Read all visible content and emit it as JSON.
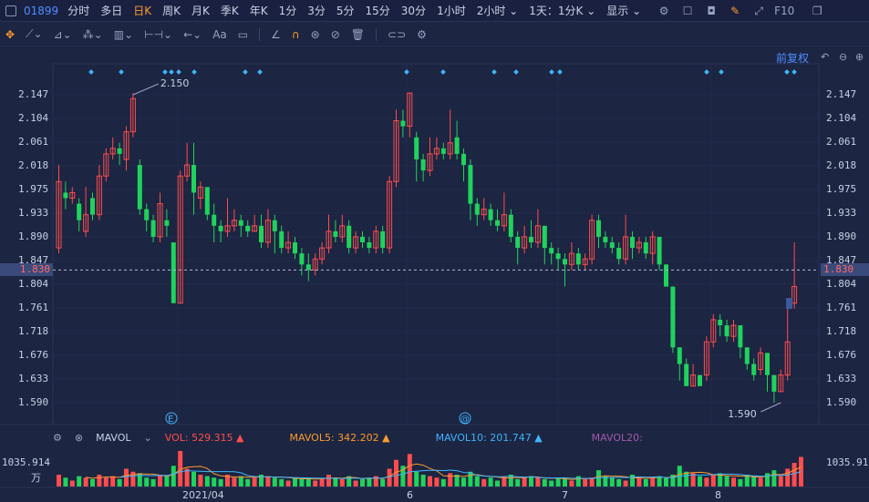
{
  "topbar": {
    "code": "01899",
    "periods": [
      "分时",
      "多日",
      "日K",
      "周K",
      "月K",
      "季K",
      "年K",
      "1分",
      "3分",
      "5分",
      "15分",
      "30分",
      "1小时",
      "2小时 ⌄",
      "1天：1分K ⌄",
      "显示 ⌄"
    ],
    "active_period": "日K",
    "f10": "F10"
  },
  "toolbar": {
    "text_tool": "Aa"
  },
  "chart_header": {
    "adjust_label": "前复权"
  },
  "price_axis": {
    "labels": [
      "2.147",
      "2.104",
      "2.061",
      "2.018",
      "1.975",
      "1.933",
      "1.890",
      "1.847",
      "1.804",
      "1.761",
      "1.718",
      "1.676",
      "1.633",
      "1.590"
    ],
    "current": "1.830"
  },
  "annotations": {
    "high": "2.150",
    "low": "1.590"
  },
  "markers": {
    "e_marker": "E",
    "at_marker": "@"
  },
  "indicator": {
    "name": "MAVOL",
    "vol": "VOL: 529.315 ▲",
    "mavol5": "MAVOL5: 342.202 ▲",
    "mavol10": "MAVOL10: 201.747 ▲",
    "mavol20": "MAVOL20:"
  },
  "volume_axis": {
    "max": "1035.914",
    "unit": "万"
  },
  "dates": [
    "2021/04",
    "6",
    "7",
    "8"
  ],
  "colors": {
    "up": "#ff4d4f",
    "down": "#1fd35d",
    "bg": "#1c2541",
    "accent": "#4f8cff",
    "active": "#ff9a2e"
  },
  "chart_data": {
    "type": "candlestick",
    "ylim": [
      1.59,
      2.147
    ],
    "candles": [
      [
        1.87,
        1.99,
        2.02,
        1.86
      ],
      [
        1.97,
        1.96,
        1.99,
        1.94
      ],
      [
        1.96,
        1.97,
        1.98,
        1.95
      ],
      [
        1.95,
        1.92,
        1.96,
        1.9
      ],
      [
        1.9,
        1.93,
        1.98,
        1.89
      ],
      [
        1.96,
        1.93,
        1.97,
        1.92
      ],
      [
        1.93,
        2.0,
        2.02,
        1.92
      ],
      [
        2.0,
        2.04,
        2.05,
        1.99
      ],
      [
        2.04,
        2.05,
        2.07,
        2.03
      ],
      [
        2.05,
        2.04,
        2.06,
        2.02
      ],
      [
        2.03,
        2.08,
        2.09,
        2.01
      ],
      [
        2.08,
        2.14,
        2.15,
        2.07
      ],
      [
        2.02,
        1.94,
        2.03,
        1.93
      ],
      [
        1.94,
        1.92,
        1.95,
        1.9
      ],
      [
        1.92,
        1.89,
        1.93,
        1.88
      ],
      [
        1.89,
        1.95,
        1.97,
        1.88
      ],
      [
        1.92,
        1.91,
        1.94,
        1.89
      ],
      [
        1.88,
        1.77,
        1.88,
        1.77
      ],
      [
        1.77,
        2.0,
        2.01,
        1.77
      ],
      [
        2.0,
        2.02,
        2.06,
        1.99
      ],
      [
        2.02,
        1.97,
        2.06,
        1.93
      ],
      [
        1.96,
        1.98,
        1.99,
        1.94
      ],
      [
        1.98,
        1.93,
        1.98,
        1.92
      ],
      [
        1.93,
        1.91,
        1.95,
        1.88
      ],
      [
        1.91,
        1.9,
        1.92,
        1.88
      ],
      [
        1.9,
        1.91,
        1.96,
        1.89
      ],
      [
        1.91,
        1.92,
        1.94,
        1.9
      ],
      [
        1.92,
        1.91,
        1.93,
        1.89
      ],
      [
        1.91,
        1.9,
        1.92,
        1.89
      ],
      [
        1.9,
        1.91,
        1.93,
        1.9
      ],
      [
        1.91,
        1.88,
        1.93,
        1.87
      ],
      [
        1.88,
        1.92,
        1.94,
        1.87
      ],
      [
        1.92,
        1.9,
        1.93,
        1.86
      ],
      [
        1.9,
        1.87,
        1.91,
        1.86
      ],
      [
        1.87,
        1.88,
        1.9,
        1.86
      ],
      [
        1.88,
        1.86,
        1.89,
        1.85
      ],
      [
        1.86,
        1.84,
        1.87,
        1.82
      ],
      [
        1.84,
        1.83,
        1.86,
        1.81
      ],
      [
        1.83,
        1.85,
        1.86,
        1.82
      ],
      [
        1.85,
        1.87,
        1.88,
        1.84
      ],
      [
        1.87,
        1.9,
        1.93,
        1.86
      ],
      [
        1.9,
        1.89,
        1.92,
        1.88
      ],
      [
        1.89,
        1.91,
        1.93,
        1.88
      ],
      [
        1.91,
        1.87,
        1.92,
        1.86
      ],
      [
        1.87,
        1.89,
        1.9,
        1.86
      ],
      [
        1.89,
        1.88,
        1.9,
        1.87
      ],
      [
        1.88,
        1.87,
        1.89,
        1.86
      ],
      [
        1.87,
        1.9,
        1.91,
        1.86
      ],
      [
        1.9,
        1.87,
        1.91,
        1.86
      ],
      [
        1.87,
        1.99,
        2.0,
        1.86
      ],
      [
        1.99,
        2.1,
        2.12,
        1.98
      ],
      [
        2.1,
        2.09,
        2.12,
        2.07
      ],
      [
        2.09,
        2.15,
        2.15,
        2.07
      ],
      [
        2.07,
        2.03,
        2.08,
        1.99
      ],
      [
        2.03,
        2.01,
        2.04,
        1.99
      ],
      [
        2.01,
        2.04,
        2.07,
        2.0
      ],
      [
        2.04,
        2.05,
        2.07,
        2.03
      ],
      [
        2.05,
        2.04,
        2.06,
        2.03
      ],
      [
        2.04,
        2.06,
        2.12,
        2.03
      ],
      [
        2.07,
        2.04,
        2.1,
        2.03
      ],
      [
        2.04,
        2.02,
        2.05,
        1.99
      ],
      [
        2.02,
        1.95,
        2.03,
        1.92
      ],
      [
        1.95,
        1.93,
        1.96,
        1.91
      ],
      [
        1.93,
        1.94,
        1.96,
        1.92
      ],
      [
        1.94,
        1.92,
        1.95,
        1.91
      ],
      [
        1.92,
        1.91,
        1.94,
        1.9
      ],
      [
        1.91,
        1.93,
        1.97,
        1.9
      ],
      [
        1.93,
        1.89,
        1.94,
        1.88
      ],
      [
        1.89,
        1.87,
        1.9,
        1.84
      ],
      [
        1.87,
        1.89,
        1.91,
        1.86
      ],
      [
        1.89,
        1.88,
        1.92,
        1.87
      ],
      [
        1.88,
        1.91,
        1.94,
        1.87
      ],
      [
        1.91,
        1.87,
        1.91,
        1.84
      ],
      [
        1.87,
        1.86,
        1.88,
        1.84
      ],
      [
        1.86,
        1.85,
        1.87,
        1.83
      ],
      [
        1.85,
        1.84,
        1.86,
        1.8
      ],
      [
        1.84,
        1.86,
        1.88,
        1.83
      ],
      [
        1.86,
        1.84,
        1.87,
        1.83
      ],
      [
        1.84,
        1.85,
        1.86,
        1.83
      ],
      [
        1.85,
        1.92,
        1.93,
        1.84
      ],
      [
        1.92,
        1.89,
        1.93,
        1.87
      ],
      [
        1.89,
        1.88,
        1.9,
        1.87
      ],
      [
        1.88,
        1.87,
        1.89,
        1.86
      ],
      [
        1.87,
        1.85,
        1.88,
        1.84
      ],
      [
        1.85,
        1.89,
        1.93,
        1.84
      ],
      [
        1.89,
        1.87,
        1.9,
        1.85
      ],
      [
        1.87,
        1.88,
        1.89,
        1.86
      ],
      [
        1.88,
        1.86,
        1.89,
        1.85
      ],
      [
        1.86,
        1.89,
        1.9,
        1.84
      ],
      [
        1.89,
        1.84,
        1.89,
        1.83
      ],
      [
        1.84,
        1.8,
        1.84,
        1.8
      ],
      [
        1.8,
        1.69,
        1.8,
        1.68
      ],
      [
        1.69,
        1.66,
        1.69,
        1.63
      ],
      [
        1.66,
        1.62,
        1.67,
        1.62
      ],
      [
        1.62,
        1.64,
        1.66,
        1.62
      ],
      [
        1.64,
        1.62,
        1.64,
        1.62
      ],
      [
        1.64,
        1.7,
        1.71,
        1.63
      ],
      [
        1.7,
        1.74,
        1.75,
        1.69
      ],
      [
        1.74,
        1.73,
        1.75,
        1.71
      ],
      [
        1.73,
        1.71,
        1.74,
        1.7
      ],
      [
        1.71,
        1.73,
        1.74,
        1.7
      ],
      [
        1.73,
        1.69,
        1.73,
        1.67
      ],
      [
        1.69,
        1.66,
        1.69,
        1.65
      ],
      [
        1.66,
        1.64,
        1.67,
        1.63
      ],
      [
        1.65,
        1.68,
        1.69,
        1.64
      ],
      [
        1.68,
        1.64,
        1.68,
        1.61
      ],
      [
        1.64,
        1.61,
        1.64,
        1.59
      ],
      [
        1.61,
        1.64,
        1.65,
        1.61
      ],
      [
        1.64,
        1.7,
        1.76,
        1.63
      ],
      [
        1.77,
        1.8,
        1.88,
        1.76
      ]
    ],
    "volumes": [
      40,
      30,
      20,
      35,
      30,
      25,
      40,
      30,
      35,
      25,
      60,
      50,
      45,
      30,
      25,
      40,
      35,
      70,
      120,
      60,
      50,
      40,
      35,
      30,
      25,
      40,
      30,
      35,
      25,
      30,
      40,
      35,
      30,
      25,
      20,
      30,
      25,
      30,
      20,
      25,
      40,
      30,
      25,
      35,
      20,
      25,
      30,
      35,
      25,
      60,
      90,
      70,
      110,
      50,
      40,
      35,
      30,
      25,
      45,
      40,
      30,
      50,
      35,
      25,
      30,
      20,
      35,
      40,
      25,
      30,
      35,
      30,
      25,
      20,
      30,
      25,
      20,
      35,
      25,
      30,
      55,
      35,
      30,
      25,
      20,
      40,
      30,
      25,
      30,
      35,
      30,
      40,
      70,
      50,
      45,
      35,
      30,
      40,
      45,
      35,
      30,
      25,
      40,
      35,
      30,
      45,
      55,
      35,
      60,
      80,
      100
    ]
  }
}
